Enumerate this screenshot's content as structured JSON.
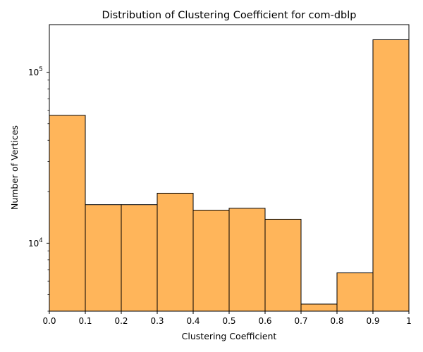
{
  "chart_data": {
    "type": "bar",
    "title": "Distribution of Clustering Coefficient for com-dblp",
    "xlabel": "Clustering Coefficient",
    "ylabel": "Number of Vertices",
    "yscale": "log",
    "xlim": [
      0,
      1
    ],
    "ylim": [
      4000,
      190000
    ],
    "bins": [
      {
        "x0": 0.0,
        "x1": 0.1,
        "value": 56000
      },
      {
        "x0": 0.1,
        "x1": 0.2,
        "value": 16800
      },
      {
        "x0": 0.2,
        "x1": 0.3,
        "value": 16800
      },
      {
        "x0": 0.3,
        "x1": 0.4,
        "value": 19600
      },
      {
        "x0": 0.4,
        "x1": 0.5,
        "value": 15600
      },
      {
        "x0": 0.5,
        "x1": 0.6,
        "value": 16000
      },
      {
        "x0": 0.6,
        "x1": 0.7,
        "value": 13800
      },
      {
        "x0": 0.7,
        "x1": 0.8,
        "value": 4400
      },
      {
        "x0": 0.8,
        "x1": 0.9,
        "value": 6700
      },
      {
        "x0": 0.9,
        "x1": 1.0,
        "value": 155000
      }
    ],
    "x_ticks": [
      {
        "value": 0.0,
        "label": "0.0"
      },
      {
        "value": 0.1,
        "label": "0.1"
      },
      {
        "value": 0.2,
        "label": "0.2"
      },
      {
        "value": 0.3,
        "label": "0.3"
      },
      {
        "value": 0.4,
        "label": "0.4"
      },
      {
        "value": 0.5,
        "label": "0.5"
      },
      {
        "value": 0.6,
        "label": "0.6"
      },
      {
        "value": 0.7,
        "label": "0.7"
      },
      {
        "value": 0.8,
        "label": "0.8"
      },
      {
        "value": 0.9,
        "label": "0.9"
      },
      {
        "value": 1.0,
        "label": "1"
      }
    ],
    "y_major_ticks": [
      {
        "value": 10000,
        "base": "10",
        "exp": "4"
      },
      {
        "value": 100000,
        "base": "10",
        "exp": "5"
      }
    ],
    "y_minor_ticks": [
      4000,
      5000,
      6000,
      7000,
      8000,
      9000,
      20000,
      30000,
      40000,
      50000,
      60000,
      70000,
      80000,
      90000
    ],
    "grid": false,
    "colors": {
      "bar_fill": "#ffb55a",
      "bar_edge": "#000000",
      "axis": "#000000"
    }
  }
}
